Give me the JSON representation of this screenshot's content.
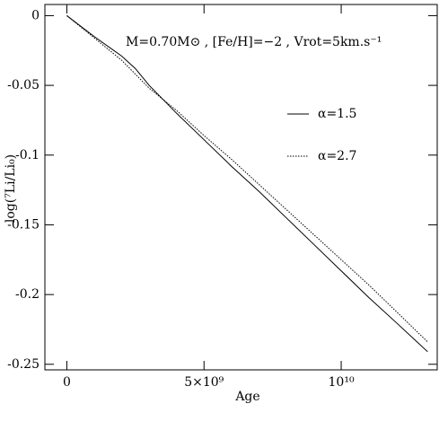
{
  "chart_data": {
    "type": "line",
    "annotation": "M=0.70M⊙ , [Fe/H]=−2 , Vrot=5km.s⁻¹",
    "x_label": "Age",
    "y_label": "log(⁷Li/Li₀)",
    "x": [
      0,
      1000000000,
      2000000000,
      2500000000,
      3000000000,
      4000000000,
      5000000000,
      6000000000,
      7000000000,
      8000000000,
      9000000000,
      10000000000,
      11000000000,
      12000000000,
      13150000000
    ],
    "series": [
      {
        "name": "α=1.5",
        "color": "#000000",
        "dash": "solid",
        "values": [
          0,
          -0.015,
          -0.029,
          -0.038,
          -0.05,
          -0.07,
          -0.089,
          -0.108,
          -0.126,
          -0.145,
          -0.164,
          -0.183,
          -0.202,
          -0.22,
          -0.241
        ]
      },
      {
        "name": "α=2.7",
        "color": "#000000",
        "dash": "dotted",
        "values": [
          0,
          -0.016,
          -0.032,
          -0.042,
          -0.052,
          -0.068,
          -0.086,
          -0.103,
          -0.121,
          -0.139,
          -0.157,
          -0.175,
          -0.193,
          -0.212,
          -0.234
        ]
      }
    ],
    "xlim": [
      -800000000,
      13500000000
    ],
    "ylim": [
      -0.254,
      0.008
    ],
    "xticks": [
      0,
      {
        "value": 5000000000,
        "label": "5×10⁹"
      },
      {
        "value": 10000000000,
        "label": "10¹⁰"
      }
    ],
    "yticks": [
      0,
      -0.05,
      -0.1,
      -0.15,
      -0.2,
      -0.25
    ]
  }
}
